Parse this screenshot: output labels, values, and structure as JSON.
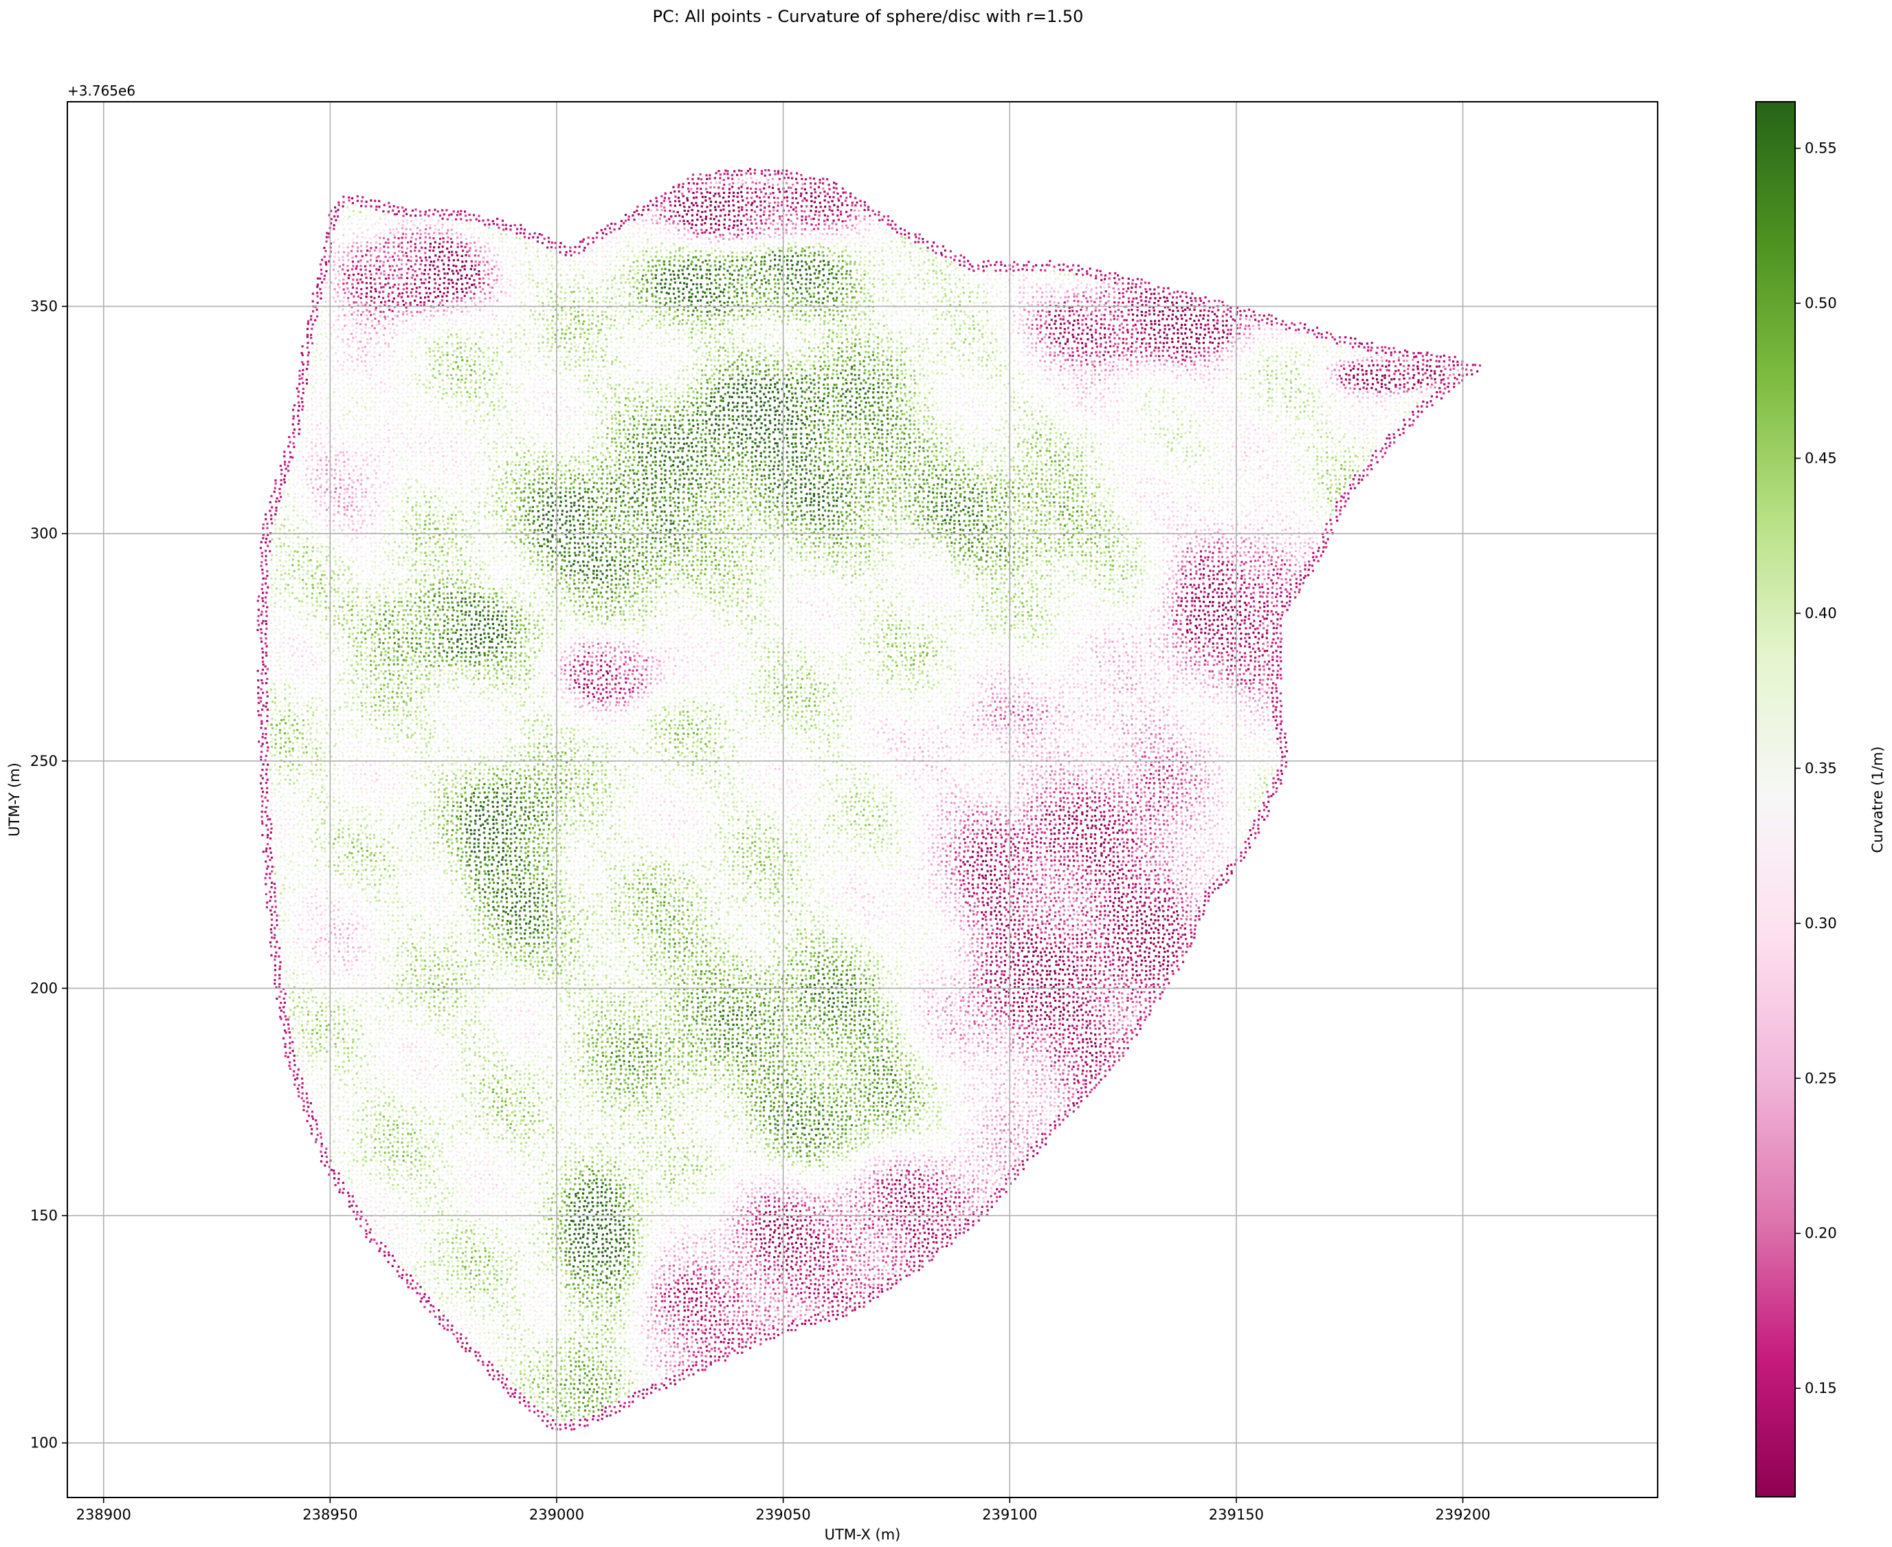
{
  "figure": {
    "title": "PC: All points - Curvature of sphere/disc with r=1.50"
  },
  "chart_data": {
    "type": "scatter",
    "title": "PC: All points - Curvature of sphere/disc with r=1.50",
    "xlabel": "UTM-X (m)",
    "ylabel": "UTM-Y (m)",
    "y_offset_label": "+3.765e6",
    "xlim": [
      238892,
      239243
    ],
    "ylim": [
      88,
      395
    ],
    "x_ticks": [
      238900,
      238950,
      239000,
      239050,
      239100,
      239150,
      239200
    ],
    "y_ticks": [
      100,
      150,
      200,
      250,
      300,
      350
    ],
    "x_tick_labels": [
      "238900",
      "238950",
      "239000",
      "239050",
      "239100",
      "239150",
      "239200"
    ],
    "y_tick_labels": [
      "100",
      "150",
      "200",
      "250",
      "300",
      "350"
    ],
    "grid": true,
    "colormap": "PiYG",
    "colorbar": {
      "label": "Curvatre (1/m)",
      "range": [
        0.115,
        0.565
      ],
      "ticks": [
        0.15,
        0.2,
        0.25,
        0.3,
        0.35,
        0.4,
        0.45,
        0.5,
        0.55
      ],
      "tick_labels": [
        "0.15",
        "0.20",
        "0.25",
        "0.30",
        "0.35",
        "0.40",
        "0.45",
        "0.50",
        "0.55"
      ],
      "colors": [
        "#8e0152",
        "#c51b7d",
        "#de77ae",
        "#f1b6da",
        "#fde0ef",
        "#f7f7f7",
        "#e6f5d0",
        "#b8e186",
        "#7fbc41",
        "#4d9221",
        "#276419"
      ]
    },
    "region_boundary": [
      [
        239000,
        102
      ],
      [
        238990,
        110
      ],
      [
        238975,
        125
      ],
      [
        238958,
        145
      ],
      [
        238948,
        162
      ],
      [
        238940,
        185
      ],
      [
        238937,
        205
      ],
      [
        238935,
        232
      ],
      [
        238934,
        260
      ],
      [
        238934,
        285
      ],
      [
        238935,
        302
      ],
      [
        238941,
        322
      ],
      [
        238944,
        342
      ],
      [
        238947,
        357
      ],
      [
        238950,
        372
      ],
      [
        238954,
        375
      ],
      [
        238966,
        372
      ],
      [
        238980,
        371
      ],
      [
        238992,
        368
      ],
      [
        239003,
        363
      ],
      [
        239018,
        372
      ],
      [
        239030,
        379
      ],
      [
        239045,
        381
      ],
      [
        239060,
        378
      ],
      [
        239078,
        367
      ],
      [
        239092,
        360
      ],
      [
        239110,
        360
      ],
      [
        239125,
        357
      ],
      [
        239140,
        353
      ],
      [
        239158,
        348
      ],
      [
        239180,
        342
      ],
      [
        239198,
        339
      ],
      [
        239205,
        337
      ],
      [
        239193,
        328
      ],
      [
        239185,
        320
      ],
      [
        239175,
        308
      ],
      [
        239170,
        297
      ],
      [
        239160,
        280
      ],
      [
        239160,
        262
      ],
      [
        239162,
        250
      ],
      [
        239157,
        238
      ],
      [
        239152,
        228
      ],
      [
        239145,
        220
      ],
      [
        239138,
        205
      ],
      [
        239125,
        185
      ],
      [
        239110,
        168
      ],
      [
        239095,
        150
      ],
      [
        239080,
        138
      ],
      [
        239065,
        128
      ],
      [
        239050,
        124
      ],
      [
        239035,
        117
      ],
      [
        239020,
        110
      ],
      [
        239008,
        104
      ]
    ],
    "curvature_zones": [
      {
        "value": 0.13,
        "center": [
          238968,
          358
        ],
        "radii": [
          17,
          10
        ]
      },
      {
        "value": 0.14,
        "center": [
          239045,
          371
        ],
        "radii": [
          25,
          7
        ]
      },
      {
        "value": 0.14,
        "center": [
          239130,
          347
        ],
        "radii": [
          28,
          10
        ]
      },
      {
        "value": 0.13,
        "center": [
          239185,
          335
        ],
        "radii": [
          14,
          4
        ]
      },
      {
        "value": 0.17,
        "center": [
          239150,
          283
        ],
        "radii": [
          17,
          22
        ]
      },
      {
        "value": 0.15,
        "center": [
          239115,
          215
        ],
        "radii": [
          30,
          45
        ]
      },
      {
        "value": 0.15,
        "center": [
          239070,
          145
        ],
        "radii": [
          35,
          18
        ]
      },
      {
        "value": 0.16,
        "center": [
          239030,
          125
        ],
        "radii": [
          22,
          11
        ]
      },
      {
        "value": 0.2,
        "center": [
          239012,
          270
        ],
        "radii": [
          12,
          8
        ]
      },
      {
        "value": 0.3,
        "center": [
          238955,
          320
        ],
        "radii": [
          11,
          25
        ]
      },
      {
        "value": 0.3,
        "center": [
          239105,
          250
        ],
        "radii": [
          25,
          12
        ]
      },
      {
        "value": 0.32,
        "center": [
          239130,
          330
        ],
        "radii": [
          20,
          8
        ]
      },
      {
        "value": 0.33,
        "center": [
          238950,
          212
        ],
        "radii": [
          10,
          15
        ]
      },
      {
        "value": 0.54,
        "center": [
          239050,
          320
        ],
        "radii": [
          30,
          18
        ]
      },
      {
        "value": 0.55,
        "center": [
          239010,
          300
        ],
        "radii": [
          18,
          12
        ]
      },
      {
        "value": 0.52,
        "center": [
          239045,
          355
        ],
        "radii": [
          28,
          8
        ]
      },
      {
        "value": 0.53,
        "center": [
          238975,
          280
        ],
        "radii": [
          18,
          9
        ]
      },
      {
        "value": 0.55,
        "center": [
          239010,
          135
        ],
        "radii": [
          9,
          30
        ]
      },
      {
        "value": 0.53,
        "center": [
          238990,
          230
        ],
        "radii": [
          12,
          20
        ]
      },
      {
        "value": 0.51,
        "center": [
          239060,
          180
        ],
        "radii": [
          18,
          25
        ]
      },
      {
        "value": 0.5,
        "center": [
          239100,
          302
        ],
        "radii": [
          20,
          10
        ]
      },
      {
        "value": 0.46,
        "center": [
          239030,
          195
        ],
        "radii": [
          20,
          22
        ]
      }
    ]
  }
}
